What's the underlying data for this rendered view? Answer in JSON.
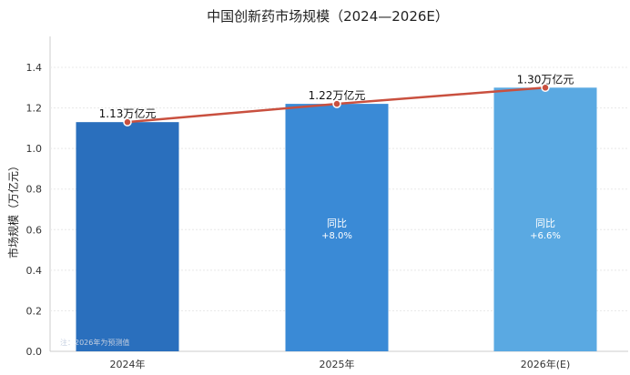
{
  "chart_data": {
    "type": "bar",
    "title": "中国创新药市场规模（2024—2026E）",
    "ylabel": "市场规模（万亿元）",
    "xlabel": "",
    "ylim": [
      0,
      1.55
    ],
    "yticks": [
      "0.0",
      "0.2",
      "0.4",
      "0.6",
      "0.8",
      "1.0",
      "1.2",
      "1.4"
    ],
    "categories": [
      "2024年",
      "2025年",
      "2026年(E)"
    ],
    "values": [
      1.13,
      1.22,
      1.3
    ],
    "value_labels": [
      "1.13万亿元",
      "1.22万亿元",
      "1.30万亿元"
    ],
    "bar_colors": [
      "#2a6fbd",
      "#3a8ad6",
      "#5aa9e2"
    ],
    "line_color": "#c9503f",
    "growth_labels": [
      null,
      {
        "title": "同比",
        "value": "+8.0%"
      },
      {
        "title": "同比",
        "value": "+6.6%"
      }
    ],
    "grid": true,
    "note": "注：2026年为预测值"
  }
}
